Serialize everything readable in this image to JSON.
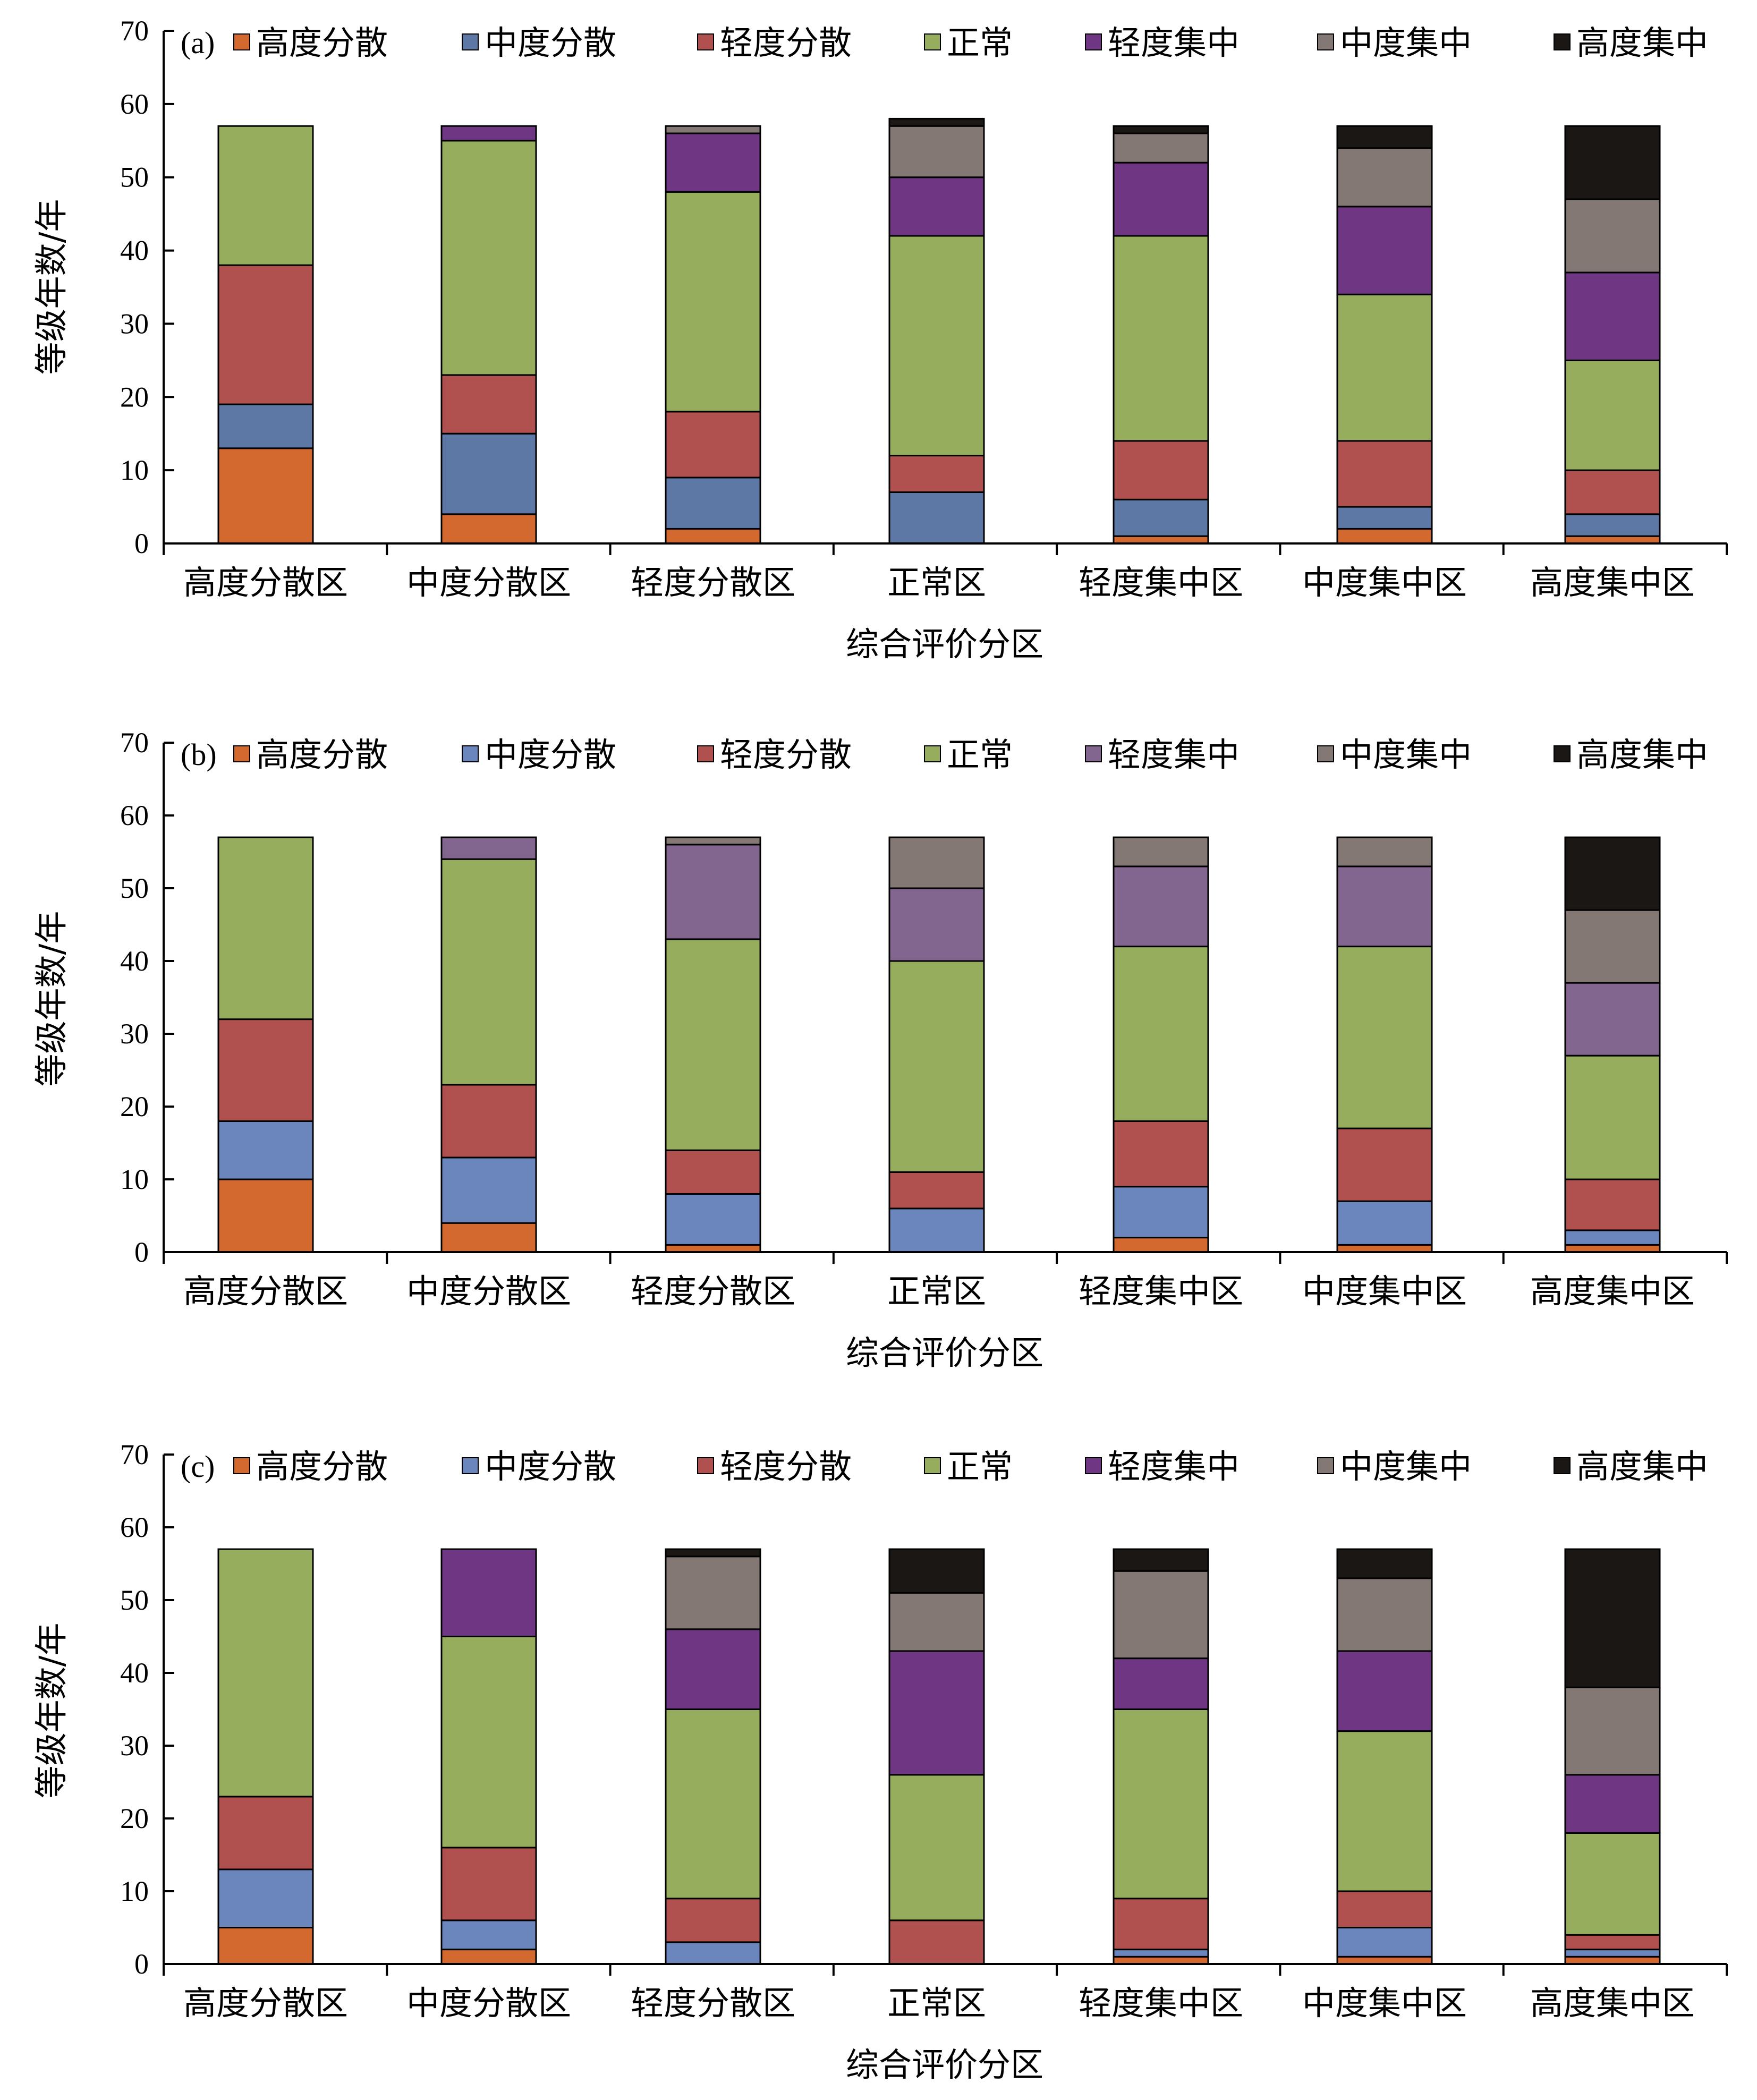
{
  "chart_data": [
    {
      "type": "bar",
      "stacked": true,
      "panel_label": "(a)",
      "categories": [
        "高度分散区",
        "中度分散区",
        "轻度分散区",
        "正常区",
        "轻度集中区",
        "中度集中区",
        "高度集中区"
      ],
      "xlabel": "综合评价分区",
      "ylabel": "等级年数/年",
      "ylim": [
        0,
        70
      ],
      "yticks": [
        0,
        10,
        20,
        30,
        40,
        50,
        60,
        70
      ],
      "legend_position": "top",
      "series": [
        {
          "name": "高度分散",
          "color": "#D4692F",
          "values": [
            13,
            4,
            2,
            0,
            1,
            2,
            1
          ]
        },
        {
          "name": "中度分散",
          "color": "#5E78A6",
          "values": [
            6,
            11,
            7,
            7,
            5,
            3,
            3
          ]
        },
        {
          "name": "轻度分散",
          "color": "#B0504F",
          "values": [
            19,
            8,
            9,
            5,
            8,
            9,
            6
          ]
        },
        {
          "name": "正常",
          "color": "#97AD5E",
          "values": [
            19,
            32,
            30,
            30,
            28,
            20,
            15
          ]
        },
        {
          "name": "轻度集中",
          "color": "#6E3683",
          "values": [
            0,
            2,
            8,
            8,
            10,
            12,
            12
          ]
        },
        {
          "name": "中度集中",
          "color": "#847874",
          "values": [
            0,
            0,
            1,
            7,
            4,
            8,
            10
          ]
        },
        {
          "name": "高度集中",
          "color": "#1B1715",
          "values": [
            0,
            0,
            0,
            1,
            1,
            3,
            10
          ]
        }
      ]
    },
    {
      "type": "bar",
      "stacked": true,
      "panel_label": "(b)",
      "categories": [
        "高度分散区",
        "中度分散区",
        "轻度分散区",
        "正常区",
        "轻度集中区",
        "中度集中区",
        "高度集中区"
      ],
      "xlabel": "综合评价分区",
      "ylabel": "等级年数/年",
      "ylim": [
        0,
        70
      ],
      "yticks": [
        0,
        10,
        20,
        30,
        40,
        50,
        60,
        70
      ],
      "legend_position": "top",
      "series": [
        {
          "name": "高度分散",
          "color": "#D4692F",
          "values": [
            10,
            4,
            1,
            0,
            2,
            1,
            1
          ]
        },
        {
          "name": "中度分散",
          "color": "#6B86BC",
          "values": [
            8,
            9,
            7,
            6,
            7,
            6,
            2
          ]
        },
        {
          "name": "轻度分散",
          "color": "#B0504F",
          "values": [
            14,
            10,
            6,
            5,
            9,
            10,
            7
          ]
        },
        {
          "name": "正常",
          "color": "#97AD5E",
          "values": [
            25,
            31,
            29,
            29,
            24,
            25,
            17
          ]
        },
        {
          "name": "轻度集中",
          "color": "#83668F",
          "values": [
            0,
            3,
            13,
            10,
            11,
            11,
            10
          ]
        },
        {
          "name": "中度集中",
          "color": "#847874",
          "values": [
            0,
            0,
            1,
            7,
            4,
            4,
            10
          ]
        },
        {
          "name": "高度集中",
          "color": "#1B1715",
          "values": [
            0,
            0,
            0,
            0,
            0,
            0,
            10
          ]
        }
      ]
    },
    {
      "type": "bar",
      "stacked": true,
      "panel_label": "(c)",
      "categories": [
        "高度分散区",
        "中度分散区",
        "轻度分散区",
        "正常区",
        "轻度集中区",
        "中度集中区",
        "高度集中区"
      ],
      "xlabel": "综合评价分区",
      "ylabel": "等级年数/年",
      "ylim": [
        0,
        70
      ],
      "yticks": [
        0,
        10,
        20,
        30,
        40,
        50,
        60,
        70
      ],
      "legend_position": "top",
      "series": [
        {
          "name": "高度分散",
          "color": "#D4692F",
          "values": [
            5,
            2,
            0,
            0,
            1,
            1,
            1
          ]
        },
        {
          "name": "中度分散",
          "color": "#6B86BC",
          "values": [
            8,
            4,
            3,
            0,
            1,
            4,
            1
          ]
        },
        {
          "name": "轻度分散",
          "color": "#B0504F",
          "values": [
            10,
            10,
            6,
            6,
            7,
            5,
            2
          ]
        },
        {
          "name": "正常",
          "color": "#97AD5E",
          "values": [
            34,
            29,
            26,
            20,
            26,
            22,
            14
          ]
        },
        {
          "name": "轻度集中",
          "color": "#6E3683",
          "values": [
            0,
            12,
            11,
            17,
            7,
            11,
            8
          ]
        },
        {
          "name": "中度集中",
          "color": "#847874",
          "values": [
            0,
            0,
            10,
            8,
            12,
            10,
            12
          ]
        },
        {
          "name": "高度集中",
          "color": "#1B1715",
          "values": [
            0,
            0,
            1,
            6,
            3,
            4,
            19
          ]
        }
      ]
    }
  ]
}
